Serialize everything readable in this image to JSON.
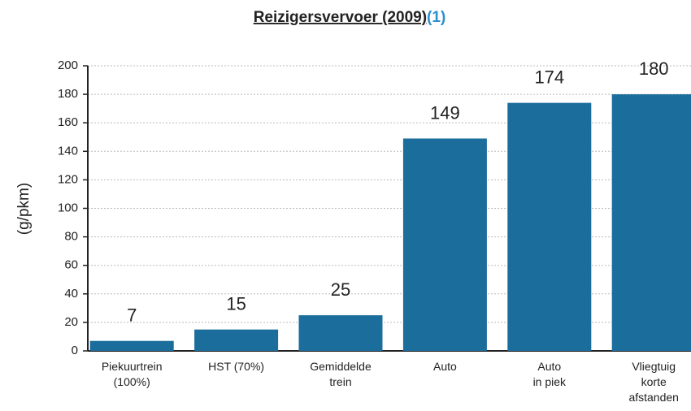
{
  "chart_data": {
    "type": "bar",
    "title": "Reizigersvervoer (2009)",
    "title_ref": "(1)",
    "y_label": "(g/pkm)",
    "categories": [
      [
        "Piekuurtrein",
        "(100%)"
      ],
      [
        "HST (70%)"
      ],
      [
        "Gemiddelde",
        "trein"
      ],
      [
        "Auto"
      ],
      [
        "Auto",
        "in piek"
      ],
      [
        "Vliegtuig",
        "korte",
        "afstanden"
      ]
    ],
    "values": [
      7,
      15,
      25,
      149,
      174,
      180
    ],
    "color": "#1b6d9c",
    "ylim": [
      0,
      200
    ],
    "yticks": [
      0,
      20,
      40,
      60,
      80,
      100,
      120,
      140,
      160,
      180,
      200
    ],
    "grid": true
  }
}
